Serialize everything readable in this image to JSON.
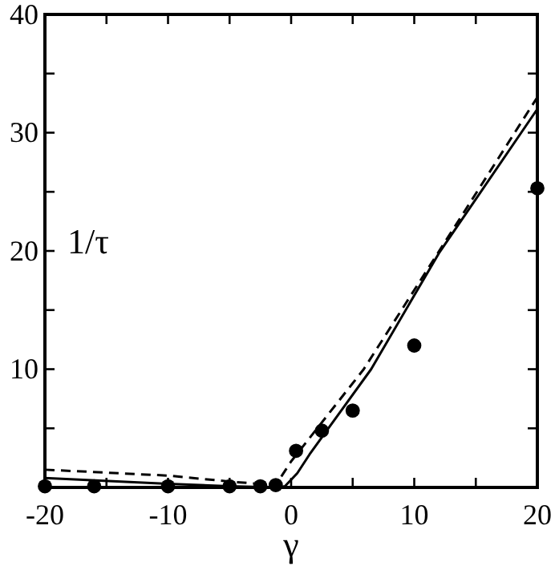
{
  "chart_data": {
    "type": "scatter",
    "xlabel": "γ",
    "ylabel": "1/τ",
    "xlim": [
      -20,
      20
    ],
    "ylim": [
      0,
      40
    ],
    "xticks": [
      -20,
      {
        "value": -15,
        "label": null
      },
      -10,
      {
        "value": -5,
        "label": null
      },
      0,
      {
        "value": 5,
        "label": null
      },
      10,
      {
        "value": 15,
        "label": null
      },
      20
    ],
    "yticks": [
      {
        "value": 0,
        "label": null
      },
      {
        "value": 5,
        "label": null
      },
      10,
      {
        "value": 15,
        "label": null
      },
      20,
      {
        "value": 25,
        "label": null
      },
      30,
      {
        "value": 35,
        "label": null
      },
      40
    ],
    "grid": false,
    "series": [
      {
        "type": "scatter",
        "color": "#000000",
        "marker": "circle",
        "x": [
          -20,
          -16,
          -10,
          -5,
          -2.5,
          -1.25,
          0.4,
          2.5,
          5,
          10,
          20
        ],
        "values": [
          0.1,
          0.1,
          0.1,
          0.1,
          0.1,
          0.2,
          3.1,
          4.8,
          6.5,
          12,
          25.3
        ]
      },
      {
        "type": "line",
        "color": "#000000",
        "line_style": "solid",
        "marker": "none",
        "x": [
          -20,
          -10,
          -5,
          -1,
          -0.5,
          0.5,
          1.5,
          6.5,
          12,
          20
        ],
        "values": [
          0.8,
          0.3,
          0.1,
          0,
          0.1,
          1.2,
          2.8,
          10,
          19.8,
          32
        ]
      },
      {
        "type": "line",
        "color": "#000000",
        "line_style": "dashed",
        "marker": "none",
        "x": [
          -20,
          -10,
          -5,
          -1.5,
          -1,
          0,
          5.9,
          20
        ],
        "values": [
          1.5,
          1.0,
          0.5,
          0.2,
          0.6,
          2.2,
          10,
          33
        ]
      }
    ]
  }
}
